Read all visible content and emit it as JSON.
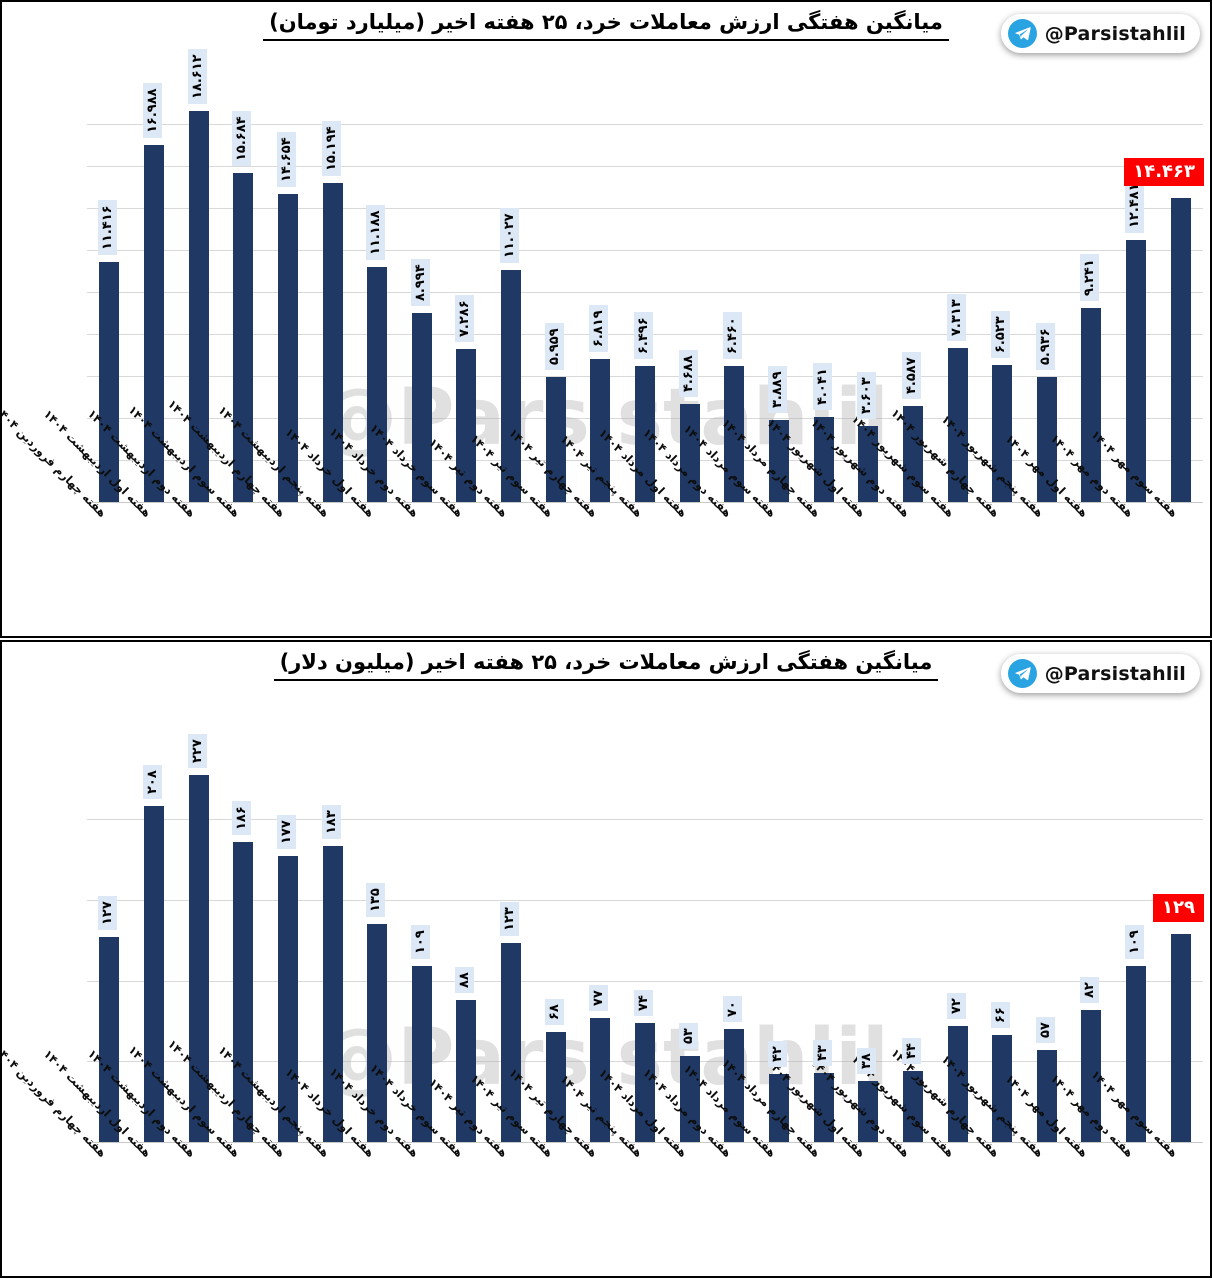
{
  "chart_data": [
    {
      "type": "bar",
      "title": "میانگین هفتگی ارزش معاملات خرد، ۲۵ هفته اخیر (میلیارد تومان)",
      "unit": "میلیارد تومان",
      "badge": "@Parsistahlil",
      "watermark": "@Parsistahlil",
      "legend_position": "none",
      "grid": true,
      "ylim": [
        0,
        20
      ],
      "grid_step": 2,
      "highlight_last_index": 24,
      "categories": [
        "هفته چهارم فروردین ۱۴۰۴",
        "هفته اول اردیبهشت ۱۴۰۴",
        "هفته دوم اردیبهشت ۱۴۰۴",
        "هفته سوم اردیبهشت ۱۴۰۴",
        "هفته چهارم اردیبهشت ۱۴۰۴",
        "هفته پنجم اردیبهشت ۱۴۰۴",
        "هفته اول خرداد ۱۴۰۴",
        "هفته دوم خرداد ۱۴۰۴",
        "هفته سوم خرداد ۱۴۰۴",
        "هفته دوم تیر ۱۴۰۴",
        "هفته سوم تیر ۱۴۰۴",
        "هفته چهارم تیر ۱۴۰۴",
        "هفته پنجم تیر ۱۴۰۴",
        "هفته اول مرداد ۱۴۰۴",
        "هفته دوم مرداد ۱۴۰۴",
        "هفته سوم مرداد ۱۴۰۴",
        "هفته چهارم مرداد ۱۴۰۴",
        "هفته اول شهریور ۱۴۰۴",
        "هفته دوم شهریور ۱۴۰۴",
        "هفته سوم شهریور ۱۴۰۴",
        "هفته چهارم شهریور ۱۴۰۴",
        "هفته پنجم شهریور ۱۴۰۴",
        "هفته اول مهر ۱۴۰۴",
        "هفته دوم مهر ۱۴۰۴",
        "هفته سوم مهر ۱۴۰۴"
      ],
      "values": [
        11.416,
        16.988,
        18.612,
        15.684,
        14.654,
        15.194,
        11.188,
        8.994,
        7.286,
        11.027,
        5.959,
        6.819,
        6.496,
        4.688,
        6.46,
        3.889,
        4.041,
        3.603,
        4.587,
        7.313,
        6.523,
        5.936,
        9.241,
        12.481,
        14.463
      ],
      "value_labels": [
        "۱۱.۴۱۶",
        "۱۶.۹۸۸",
        "۱۸.۶۱۲",
        "۱۵.۶۸۴",
        "۱۴.۶۵۴",
        "۱۵.۱۹۴",
        "۱۱.۱۸۸",
        "۸.۹۹۴",
        "۷.۲۸۶",
        "۱۱.۰۲۷",
        "۵.۹۵۹",
        "۶.۸۱۹",
        "۶.۴۹۶",
        "۴.۶۸۸",
        "۶.۴۶۰",
        "۳.۸۸۹",
        "۴.۰۴۱",
        "۳.۶۰۳",
        "۴.۵۸۷",
        "۷.۳۱۳",
        "۶.۵۲۳",
        "۵.۹۳۶",
        "۹.۲۴۱",
        "۱۲.۴۸۱",
        "۱۴.۴۶۳"
      ],
      "colors": {
        "bar": "#1f3864",
        "value_label_bg": "#dce8f5",
        "highlight_bg": "#fe0000",
        "highlight_text": "#ffffff",
        "grid": "#d9d9d9",
        "telegram": "#2aa3e3"
      }
    },
    {
      "type": "bar",
      "title": "میانگین هفتگی ارزش معاملات خرد، ۲۵ هفته اخیر (میلیون دلار)",
      "unit": "میلیون دلار",
      "badge": "@Parsistahlil",
      "watermark": "@Parsistahlil",
      "legend_position": "none",
      "grid": true,
      "ylim": [
        0,
        260
      ],
      "grid_step": 50,
      "highlight_last_index": 24,
      "categories": [
        "هفته چهارم فروردین ۱۴۰۴",
        "هفته اول اردیبهشت ۱۴۰۴",
        "هفته دوم اردیبهشت ۱۴۰۴",
        "هفته سوم اردیبهشت ۱۴۰۴",
        "هفته چهارم اردیبهشت ۱۴۰۴",
        "هفته پنجم اردیبهشت ۱۴۰۴",
        "هفته اول خرداد ۱۴۰۴",
        "هفته دوم خرداد ۱۴۰۴",
        "هفته سوم خرداد ۱۴۰۴",
        "هفته دوم تیر ۱۴۰۴",
        "هفته سوم تیر ۱۴۰۴",
        "هفته چهارم تیر ۱۴۰۴",
        "هفته پنجم تیر ۱۴۰۴",
        "هفته اول مرداد ۱۴۰۴",
        "هفته دوم مرداد ۱۴۰۴",
        "هفته سوم مرداد ۱۴۰۴",
        "هفته چهارم مرداد ۱۴۰۴",
        "هفته اول شهریور ۱۴۰۴",
        "هفته دوم شهریور ۱۴۰۴",
        "هفته سوم شهریور ۱۴۰۴",
        "هفته چهارم شهریور ۱۴۰۴",
        "هفته پنجم شهریور ۱۴۰۴",
        "هفته اول مهر ۱۴۰۴",
        "هفته دوم مهر ۱۴۰۴",
        "هفته سوم مهر ۱۴۰۴"
      ],
      "values": [
        127,
        208,
        227,
        186,
        177,
        183,
        135,
        109,
        88,
        123,
        68,
        77,
        74,
        53,
        70,
        42,
        43,
        38,
        44,
        72,
        66,
        57,
        82,
        109,
        129
      ],
      "value_labels": [
        "۱۲۷",
        "۲۰۸",
        "۲۲۷",
        "۱۸۶",
        "۱۷۷",
        "۱۸۳",
        "۱۳۵",
        "۱۰۹",
        "۸۸",
        "۱۲۳",
        "۶۸",
        "۷۷",
        "۷۴",
        "۵۳",
        "۷۰",
        "۴۲",
        "۴۳",
        "۳۸",
        "۴۴",
        "۷۲",
        "۶۶",
        "۵۷",
        "۸۲",
        "۱۰۹",
        "۱۲۹"
      ],
      "colors": {
        "bar": "#1f3864",
        "value_label_bg": "#dce8f5",
        "highlight_bg": "#fe0000",
        "highlight_text": "#ffffff",
        "grid": "#d9d9d9",
        "telegram": "#2aa3e3"
      }
    }
  ]
}
